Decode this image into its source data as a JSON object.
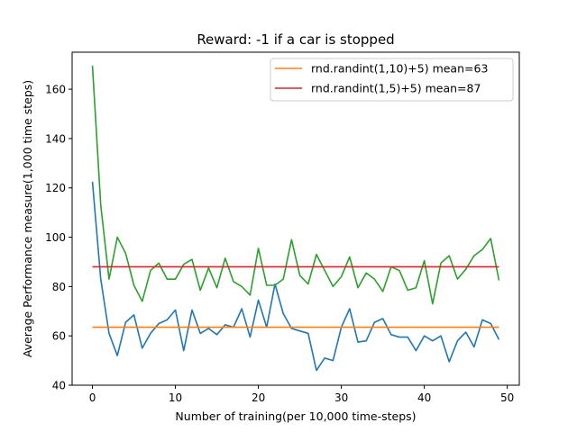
{
  "chart_data": {
    "type": "line",
    "title": "Reward: -1 if a car is stopped",
    "xlabel": "Number of training(per 10,000 time-steps)",
    "ylabel": "Average Performance measure(1,000 time steps)",
    "xlim": [
      -2.45,
      51.45
    ],
    "ylim": [
      40,
      175
    ],
    "xticks": [
      0,
      10,
      20,
      30,
      40,
      50
    ],
    "yticks": [
      40,
      60,
      80,
      100,
      120,
      140,
      160
    ],
    "grid": false,
    "legend_position": "upper right",
    "x": [
      0,
      1,
      2,
      3,
      4,
      5,
      6,
      7,
      8,
      9,
      10,
      11,
      12,
      13,
      14,
      15,
      16,
      17,
      18,
      19,
      20,
      21,
      22,
      23,
      24,
      25,
      26,
      27,
      28,
      29,
      30,
      31,
      32,
      33,
      34,
      35,
      36,
      37,
      38,
      39,
      40,
      41,
      42,
      43,
      44,
      45,
      46,
      47,
      48,
      49
    ],
    "series": [
      {
        "color": "#1f77b4",
        "values": [
          122.5,
          83,
          61,
          52,
          65.5,
          68.5,
          55,
          61,
          65,
          66.5,
          70.5,
          54,
          70.5,
          61,
          63,
          60.5,
          64.5,
          63.5,
          71,
          59.5,
          74.5,
          63.5,
          81,
          69,
          63,
          62,
          61,
          46,
          51,
          50,
          63.5,
          71,
          57.5,
          58,
          65.5,
          67,
          60.5,
          59.5,
          59.5,
          54,
          60,
          58,
          60,
          49.5,
          58,
          61.5,
          55.5,
          66.5,
          65,
          58.5
        ]
      },
      {
        "color": "#2ca02c",
        "values": [
          169.5,
          113,
          83,
          100,
          93.5,
          80.5,
          74,
          86.5,
          89.5,
          83,
          83,
          89,
          91,
          78.5,
          87.5,
          79.5,
          91.5,
          82,
          80,
          76.5,
          95.5,
          80.5,
          80.5,
          83,
          99,
          84.5,
          81,
          93,
          86.5,
          80,
          84,
          92,
          79.5,
          85.5,
          83,
          78,
          88,
          86.5,
          78.5,
          79.5,
          90.5,
          73,
          89.5,
          92.5,
          83,
          87,
          92.5,
          95,
          99.5,
          82.5
        ]
      },
      {
        "name": "rnd.randint(1,10)+5) mean=63",
        "color": "#ff7f0e",
        "values": [
          63.5,
          63.5,
          63.5,
          63.5,
          63.5,
          63.5,
          63.5,
          63.5,
          63.5,
          63.5,
          63.5,
          63.5,
          63.5,
          63.5,
          63.5,
          63.5,
          63.5,
          63.5,
          63.5,
          63.5,
          63.5,
          63.5,
          63.5,
          63.5,
          63.5,
          63.5,
          63.5,
          63.5,
          63.5,
          63.5,
          63.5,
          63.5,
          63.5,
          63.5,
          63.5,
          63.5,
          63.5,
          63.5,
          63.5,
          63.5,
          63.5,
          63.5,
          63.5,
          63.5,
          63.5,
          63.5,
          63.5,
          63.5,
          63.5,
          63.5
        ]
      },
      {
        "name": "rnd.randint(1,5)+5) mean=87",
        "color": "#d62728",
        "values": [
          88,
          88,
          88,
          88,
          88,
          88,
          88,
          88,
          88,
          88,
          88,
          88,
          88,
          88,
          88,
          88,
          88,
          88,
          88,
          88,
          88,
          88,
          88,
          88,
          88,
          88,
          88,
          88,
          88,
          88,
          88,
          88,
          88,
          88,
          88,
          88,
          88,
          88,
          88,
          88,
          88,
          88,
          88,
          88,
          88,
          88,
          88,
          88,
          88,
          88
        ]
      }
    ]
  }
}
